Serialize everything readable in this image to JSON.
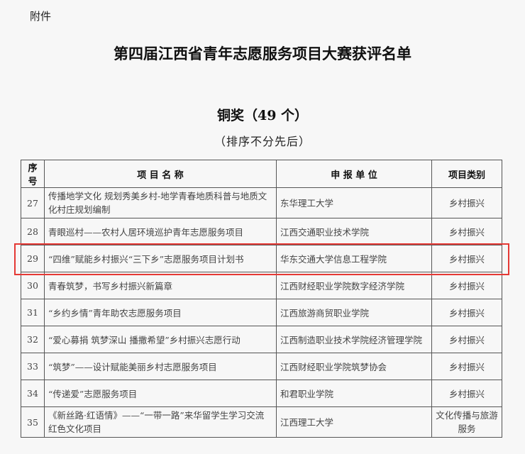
{
  "attachment_label": "附件",
  "title": "第四届江西省青年志愿服务项目大赛获评名单",
  "award": "铜奖（49 个）",
  "note": "（排序不分先后）",
  "highlight_color": "#e53935",
  "table": {
    "headers": [
      "序号",
      "项 目 名 称",
      "申 报 单 位",
      "项目类别"
    ],
    "rows": [
      {
        "no": "27",
        "name": "传播地学文化 规划秀美乡村-地学青春地质科普与地质文化村庄规划编制",
        "unit": "东华理工大学",
        "category": "乡村振兴"
      },
      {
        "no": "28",
        "name": "青眼巡村——农村人居环境巡护青年志愿服务项目",
        "unit": "江西交通职业技术学院",
        "category": "乡村振兴"
      },
      {
        "no": "29",
        "name": "“四维”赋能乡村振兴“三下乡”志愿服务项目计划书",
        "unit": "华东交通大学信息工程学院",
        "category": "乡村振兴"
      },
      {
        "no": "30",
        "name": "青春筑梦，书写乡村振兴新篇章",
        "unit": "江西财经职业学院数字经济学院",
        "category": "乡村振兴"
      },
      {
        "no": "31",
        "name": "“乡约乡情”青年助农志愿服务项目",
        "unit": "江西旅游商贸职业学院",
        "category": "乡村振兴"
      },
      {
        "no": "32",
        "name": "“爱心募捐 筑梦深山 播撒希望”乡村振兴志愿行动",
        "unit": "江西制造职业技术学院经济管理学院",
        "category": "乡村振兴"
      },
      {
        "no": "33",
        "name": "“筑梦”——设计赋能美丽乡村志愿服务项目",
        "unit": "江西财经职业学院筑梦协会",
        "category": "乡村振兴"
      },
      {
        "no": "34",
        "name": "“传递爱”志愿服务项目",
        "unit": "和君职业学院",
        "category": "乡村振兴"
      },
      {
        "no": "35",
        "name": "《新丝路·红语情》——“一带一路”来华留学生学习交流红色文化项目",
        "unit": "江西理工大学",
        "category": "文化传播与旅游服务"
      }
    ]
  }
}
